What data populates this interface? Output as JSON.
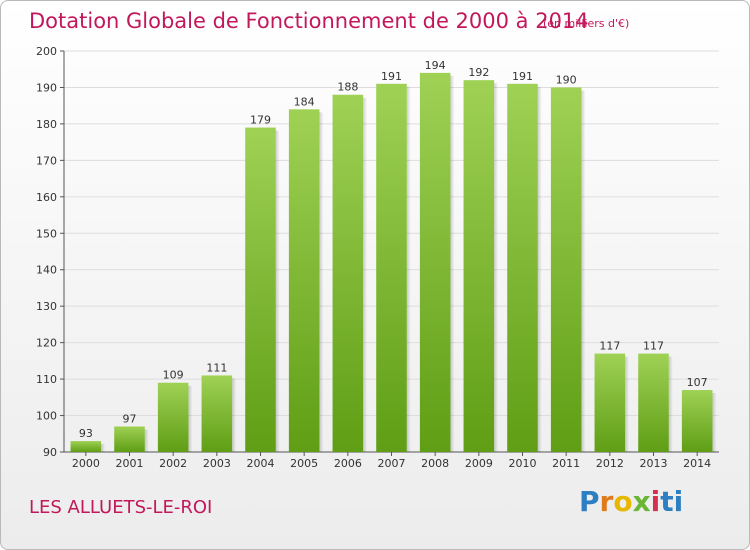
{
  "header": {
    "title": "Dotation Globale de Fonctionnement de 2000 à 2014",
    "subtitle": "(en milliers d'€)"
  },
  "footer": {
    "commune": "LES ALLUETS-LE-ROI",
    "logo_text": "Proxiti"
  },
  "colors": {
    "bar_top": "#9fd155",
    "bar_bottom": "#5f9e15",
    "title": "#c2185b",
    "grid": "#dddddd"
  },
  "chart_data": {
    "type": "bar",
    "title": "Dotation Globale de Fonctionnement de 2000 à 2014",
    "subtitle": "(en milliers d'€)",
    "categories": [
      "2000",
      "2001",
      "2002",
      "2003",
      "2004",
      "2005",
      "2006",
      "2007",
      "2008",
      "2009",
      "2010",
      "2011",
      "2012",
      "2013",
      "2014"
    ],
    "values": [
      93,
      97,
      109,
      111,
      179,
      184,
      188,
      191,
      194,
      192,
      191,
      190,
      117,
      117,
      107
    ],
    "ylim": [
      90,
      200
    ],
    "yticks": [
      90,
      100,
      110,
      120,
      130,
      140,
      150,
      160,
      170,
      180,
      190,
      200
    ],
    "grid": true,
    "legend": "none"
  }
}
